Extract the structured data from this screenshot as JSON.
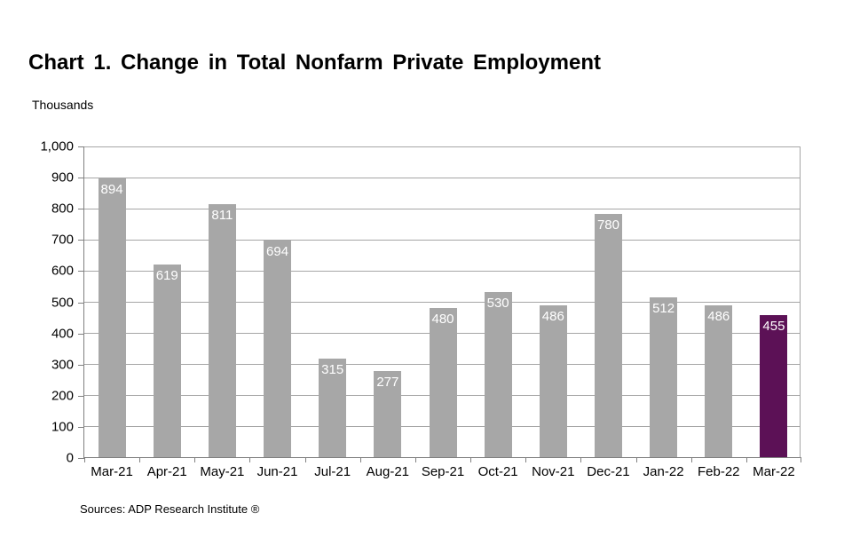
{
  "title": "Chart 1. Change in Total Nonfarm Private Employment",
  "y_axis_unit_label": "Thousands",
  "source_note": "Sources: ADP Research Institute ®",
  "chart_data": {
    "type": "bar",
    "title": "Chart 1. Change in Total Nonfarm Private Employment",
    "xlabel": "",
    "ylabel": "Thousands",
    "categories": [
      "Mar-21",
      "Apr-21",
      "May-21",
      "Jun-21",
      "Jul-21",
      "Aug-21",
      "Sep-21",
      "Oct-21",
      "Nov-21",
      "Dec-21",
      "Jan-22",
      "Feb-22",
      "Mar-22"
    ],
    "values": [
      894,
      619,
      811,
      694,
      315,
      277,
      480,
      530,
      486,
      780,
      512,
      486,
      455
    ],
    "data_labels_shown": true,
    "ylim": [
      0,
      1000
    ],
    "y_tick_interval": 100,
    "y_tick_labels": [
      "0",
      "100",
      "200",
      "300",
      "400",
      "500",
      "600",
      "700",
      "800",
      "900",
      "1,000"
    ],
    "grid": true,
    "legend": false,
    "highlight_index": 12,
    "colors": {
      "bar_default": "#a7a7a7",
      "bar_highlight": "#5c1156",
      "data_label_text": "#ffffff",
      "gridline": "#a6a6a6",
      "axis": "#808080",
      "text": "#000000"
    }
  }
}
